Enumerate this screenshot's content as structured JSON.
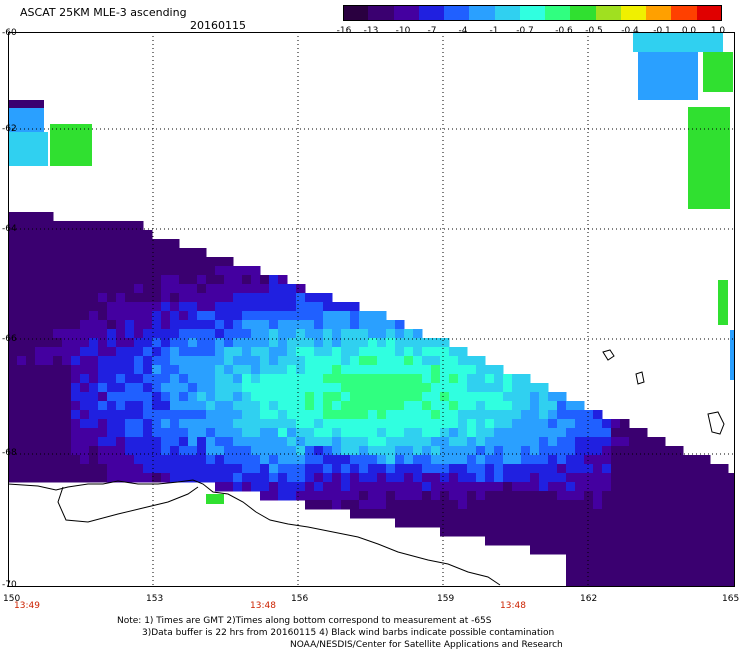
{
  "header": {
    "title": "ASCAT 25KM MLE-3 ascending",
    "date": "20160115"
  },
  "colorbar": {
    "colors": [
      "#2a0040",
      "#3a0070",
      "#4400a0",
      "#2020e0",
      "#2060ff",
      "#2aa0ff",
      "#30d0f0",
      "#30ffe0",
      "#30ff80",
      "#30e030",
      "#a0e020",
      "#f0f000",
      "#ffa000",
      "#ff4000",
      "#e00000"
    ],
    "labels": [
      "-16",
      "-13",
      "-10",
      "-7",
      "-4",
      "-1",
      "-0.7",
      "-0.6",
      "-0.5",
      "-0.4",
      "-0.1",
      "0.0",
      "1.0"
    ]
  },
  "axes": {
    "lat_labels": [
      "-60",
      "-62",
      "-64",
      "-66",
      "-68",
      "-70"
    ],
    "lon_labels": [
      "150",
      "153",
      "156",
      "159",
      "162",
      "165"
    ],
    "times": [
      "13:49",
      "13:48",
      "13:48"
    ]
  },
  "notes": [
    "Note: 1) Times are GMT 2)Times along bottom correspond to measurement at -65S",
    "3)Data buffer is 22 hrs from 20160115 4) Black wind barbs indicate possible contamination",
    "NOAA/NESDIS/Center for Satellite Applications and Research"
  ]
}
